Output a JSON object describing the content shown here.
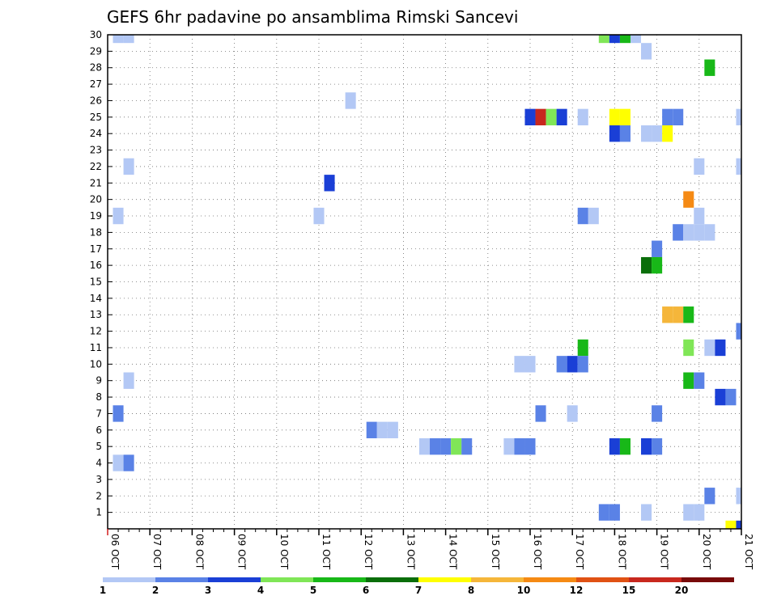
{
  "chart_data": {
    "type": "heatmap",
    "title": "GEFS 6hr padavine po ansamblima Rimski Sancevi",
    "xlabel": "",
    "ylabel": "",
    "x_tick_labels": [
      "06 OCT",
      "07 OCT",
      "08 OCT",
      "09 OCT",
      "10 OCT",
      "11 OCT",
      "12 OCT",
      "13 OCT",
      "14 OCT",
      "15 OCT",
      "16 OCT",
      "17 OCT",
      "18 OCT",
      "19 OCT",
      "20 OCT",
      "21 OCT"
    ],
    "y_tick_labels": [
      "1",
      "2",
      "3",
      "4",
      "5",
      "6",
      "7",
      "8",
      "9",
      "10",
      "11",
      "12",
      "13",
      "14",
      "15",
      "16",
      "17",
      "18",
      "19",
      "20",
      "21",
      "22",
      "23",
      "24",
      "25",
      "26",
      "27",
      "28",
      "29",
      "30"
    ],
    "x_unit": "6-hour steps from 06 OCT 00Z",
    "xlim": [
      0,
      60
    ],
    "ylim": [
      0,
      30
    ],
    "grid": true,
    "legend_placement": "bottom",
    "legend": {
      "labels": [
        "1",
        "2",
        "3",
        "4",
        "5",
        "6",
        "7",
        "8",
        "10",
        "12",
        "15",
        "20"
      ],
      "colors": [
        "#b3c8f5",
        "#5a82e6",
        "#1a3fd6",
        "#80e657",
        "#18b818",
        "#0a6e0a",
        "#ffff00",
        "#f5b63a",
        "#f58a14",
        "#e05214",
        "#c8281e",
        "#780a0a"
      ]
    },
    "cells": [
      {
        "member": 30,
        "step": 1,
        "cls": 1
      },
      {
        "member": 30,
        "step": 2,
        "cls": 1
      },
      {
        "member": 30,
        "step": 47,
        "cls": 4
      },
      {
        "member": 30,
        "step": 48,
        "cls": 3
      },
      {
        "member": 30,
        "step": 49,
        "cls": 5
      },
      {
        "member": 30,
        "step": 50,
        "cls": 1
      },
      {
        "member": 29,
        "step": 51,
        "cls": 1
      },
      {
        "member": 28,
        "step": 57,
        "cls": 5
      },
      {
        "member": 26,
        "step": 23,
        "cls": 1
      },
      {
        "member": 25,
        "step": 40,
        "cls": 3
      },
      {
        "member": 25,
        "step": 41,
        "cls": 11
      },
      {
        "member": 25,
        "step": 42,
        "cls": 4
      },
      {
        "member": 25,
        "step": 43,
        "cls": 3
      },
      {
        "member": 25,
        "step": 45,
        "cls": 1
      },
      {
        "member": 25,
        "step": 48,
        "cls": 7
      },
      {
        "member": 25,
        "step": 49,
        "cls": 7
      },
      {
        "member": 25,
        "step": 53,
        "cls": 2
      },
      {
        "member": 25,
        "step": 54,
        "cls": 2
      },
      {
        "member": 25,
        "step": 60,
        "cls": 1
      },
      {
        "member": 24,
        "step": 48,
        "cls": 3
      },
      {
        "member": 24,
        "step": 49,
        "cls": 2
      },
      {
        "member": 24,
        "step": 51,
        "cls": 1
      },
      {
        "member": 24,
        "step": 52,
        "cls": 1
      },
      {
        "member": 24,
        "step": 53,
        "cls": 7
      },
      {
        "member": 22,
        "step": 2,
        "cls": 1
      },
      {
        "member": 22,
        "step": 56,
        "cls": 1
      },
      {
        "member": 22,
        "step": 60,
        "cls": 1
      },
      {
        "member": 21,
        "step": 21,
        "cls": 3
      },
      {
        "member": 20,
        "step": 55,
        "cls": 9
      },
      {
        "member": 19,
        "step": 1,
        "cls": 1
      },
      {
        "member": 19,
        "step": 20,
        "cls": 1
      },
      {
        "member": 19,
        "step": 45,
        "cls": 2
      },
      {
        "member": 19,
        "step": 46,
        "cls": 1
      },
      {
        "member": 19,
        "step": 56,
        "cls": 1
      },
      {
        "member": 18,
        "step": 54,
        "cls": 2
      },
      {
        "member": 18,
        "step": 55,
        "cls": 1
      },
      {
        "member": 18,
        "step": 56,
        "cls": 1
      },
      {
        "member": 18,
        "step": 57,
        "cls": 1
      },
      {
        "member": 17,
        "step": 52,
        "cls": 2
      },
      {
        "member": 16,
        "step": 51,
        "cls": 6
      },
      {
        "member": 16,
        "step": 52,
        "cls": 5
      },
      {
        "member": 13,
        "step": 53,
        "cls": 8
      },
      {
        "member": 13,
        "step": 54,
        "cls": 8
      },
      {
        "member": 13,
        "step": 55,
        "cls": 5
      },
      {
        "member": 12,
        "step": 60,
        "cls": 2
      },
      {
        "member": 11,
        "step": 45,
        "cls": 5
      },
      {
        "member": 11,
        "step": 55,
        "cls": 4
      },
      {
        "member": 11,
        "step": 57,
        "cls": 1
      },
      {
        "member": 11,
        "step": 58,
        "cls": 3
      },
      {
        "member": 10,
        "step": 39,
        "cls": 1
      },
      {
        "member": 10,
        "step": 40,
        "cls": 1
      },
      {
        "member": 10,
        "step": 43,
        "cls": 2
      },
      {
        "member": 10,
        "step": 44,
        "cls": 3
      },
      {
        "member": 10,
        "step": 45,
        "cls": 2
      },
      {
        "member": 9,
        "step": 2,
        "cls": 1
      },
      {
        "member": 9,
        "step": 55,
        "cls": 5
      },
      {
        "member": 9,
        "step": 56,
        "cls": 2
      },
      {
        "member": 8,
        "step": 58,
        "cls": 3
      },
      {
        "member": 8,
        "step": 59,
        "cls": 2
      },
      {
        "member": 7,
        "step": 1,
        "cls": 2
      },
      {
        "member": 7,
        "step": 41,
        "cls": 2
      },
      {
        "member": 7,
        "step": 44,
        "cls": 1
      },
      {
        "member": 7,
        "step": 52,
        "cls": 2
      },
      {
        "member": 6,
        "step": 25,
        "cls": 2
      },
      {
        "member": 6,
        "step": 26,
        "cls": 1
      },
      {
        "member": 6,
        "step": 27,
        "cls": 1
      },
      {
        "member": 5,
        "step": 30,
        "cls": 1
      },
      {
        "member": 5,
        "step": 31,
        "cls": 2
      },
      {
        "member": 5,
        "step": 32,
        "cls": 2
      },
      {
        "member": 5,
        "step": 33,
        "cls": 4
      },
      {
        "member": 5,
        "step": 34,
        "cls": 2
      },
      {
        "member": 5,
        "step": 38,
        "cls": 1
      },
      {
        "member": 5,
        "step": 39,
        "cls": 2
      },
      {
        "member": 5,
        "step": 40,
        "cls": 2
      },
      {
        "member": 5,
        "step": 48,
        "cls": 3
      },
      {
        "member": 5,
        "step": 49,
        "cls": 5
      },
      {
        "member": 5,
        "step": 51,
        "cls": 3
      },
      {
        "member": 5,
        "step": 52,
        "cls": 2
      },
      {
        "member": 4,
        "step": 1,
        "cls": 1
      },
      {
        "member": 4,
        "step": 2,
        "cls": 2
      },
      {
        "member": 2,
        "step": 57,
        "cls": 2
      },
      {
        "member": 2,
        "step": 60,
        "cls": 1
      },
      {
        "member": 1,
        "step": 47,
        "cls": 2
      },
      {
        "member": 1,
        "step": 48,
        "cls": 2
      },
      {
        "member": 1,
        "step": 51,
        "cls": 1
      },
      {
        "member": 1,
        "step": 55,
        "cls": 1
      },
      {
        "member": 1,
        "step": 56,
        "cls": 1
      },
      {
        "member": 0,
        "step": 59,
        "cls": 7
      },
      {
        "member": 0,
        "step": 60,
        "cls": 3
      }
    ]
  }
}
